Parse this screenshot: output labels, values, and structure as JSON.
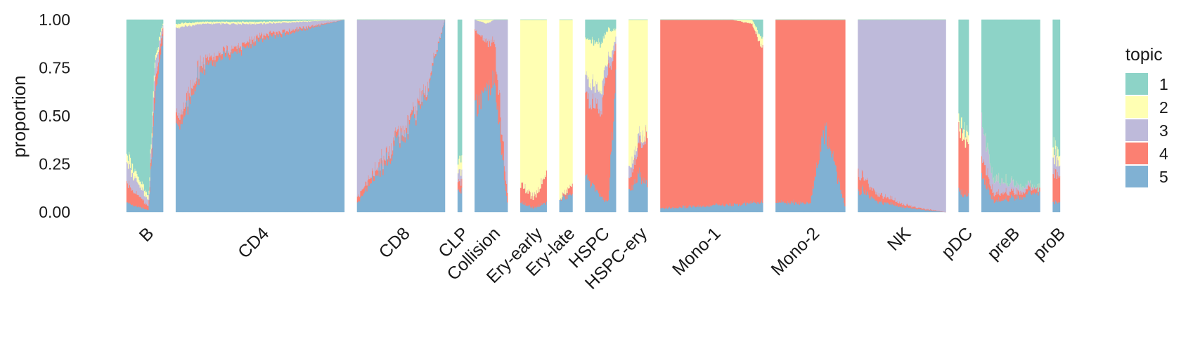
{
  "chart_data": {
    "type": "area",
    "subtype": "stacked structure plot (per-cell topic proportions, grouped by cell type)",
    "ylabel": "proportion",
    "xlabel": "",
    "ylim": [
      0,
      1
    ],
    "yticks": [
      "0.00",
      "0.25",
      "0.50",
      "0.75",
      "1.00"
    ],
    "grid": false,
    "legend": {
      "title": "topic",
      "placement": "right",
      "entries": [
        "1",
        "2",
        "3",
        "4",
        "5"
      ],
      "colors": [
        "#8dd3c7",
        "#ffffb3",
        "#bebada",
        "#fb8072",
        "#80b1d3"
      ]
    },
    "stack_order_bottom_to_top": [
      "5",
      "4",
      "3",
      "2",
      "1"
    ],
    "groups": [
      {
        "label": "B",
        "ncells": 50,
        "profile": [
          {
            "at": 0.0,
            "t1": 0.7,
            "t2": 0.05,
            "t3": 0.1,
            "t4": 0.1,
            "t5": 0.05
          },
          {
            "at": 0.6,
            "t1": 0.92,
            "t2": 0.02,
            "t3": 0.03,
            "t4": 0.02,
            "t5": 0.01
          },
          {
            "at": 0.78,
            "t1": 0.2,
            "t2": 0.03,
            "t3": 0.1,
            "t4": 0.07,
            "t5": 0.6
          },
          {
            "at": 1.0,
            "t1": 0.02,
            "t2": 0.01,
            "t3": 0.02,
            "t4": 0.05,
            "t5": 0.9
          }
        ]
      },
      {
        "label": "CD4",
        "ncells": 230,
        "profile": [
          {
            "at": 0.0,
            "t1": 0.02,
            "t2": 0.02,
            "t3": 0.48,
            "t4": 0.05,
            "t5": 0.43
          },
          {
            "at": 0.15,
            "t1": 0.01,
            "t2": 0.01,
            "t3": 0.2,
            "t4": 0.03,
            "t5": 0.75
          },
          {
            "at": 0.5,
            "t1": 0.01,
            "t2": 0.01,
            "t3": 0.06,
            "t4": 0.02,
            "t5": 0.9
          },
          {
            "at": 1.0,
            "t1": 0.0,
            "t2": 0.0,
            "t3": 0.0,
            "t4": 0.0,
            "t5": 1.0
          }
        ]
      },
      {
        "label": "CD8",
        "ncells": 120,
        "profile": [
          {
            "at": 0.0,
            "t1": 0.0,
            "t2": 0.0,
            "t3": 0.92,
            "t4": 0.03,
            "t5": 0.05
          },
          {
            "at": 0.4,
            "t1": 0.0,
            "t2": 0.0,
            "t3": 0.65,
            "t4": 0.03,
            "t5": 0.32
          },
          {
            "at": 0.8,
            "t1": 0.0,
            "t2": 0.0,
            "t3": 0.35,
            "t4": 0.02,
            "t5": 0.63
          },
          {
            "at": 1.0,
            "t1": 0.0,
            "t2": 0.0,
            "t3": 0.0,
            "t4": 0.0,
            "t5": 1.0
          }
        ]
      },
      {
        "label": "CLP",
        "ncells": 6,
        "profile": [
          {
            "at": 0.0,
            "t1": 0.75,
            "t2": 0.05,
            "t3": 0.05,
            "t4": 0.05,
            "t5": 0.1
          },
          {
            "at": 1.0,
            "t1": 0.7,
            "t2": 0.08,
            "t3": 0.05,
            "t4": 0.05,
            "t5": 0.12
          }
        ]
      },
      {
        "label": "Collision",
        "ncells": 45,
        "profile": [
          {
            "at": 0.0,
            "t1": 0.0,
            "t2": 0.0,
            "t3": 0.05,
            "t4": 0.4,
            "t5": 0.55
          },
          {
            "at": 0.35,
            "t1": 0.0,
            "t2": 0.02,
            "t3": 0.1,
            "t4": 0.25,
            "t5": 0.63
          },
          {
            "at": 0.6,
            "t1": 0.0,
            "t2": 0.0,
            "t3": 0.1,
            "t4": 0.2,
            "t5": 0.7
          },
          {
            "at": 1.0,
            "t1": 0.0,
            "t2": 0.0,
            "t3": 0.9,
            "t4": 0.05,
            "t5": 0.05
          }
        ]
      },
      {
        "label": "Ery-early",
        "ncells": 36,
        "profile": [
          {
            "at": 0.0,
            "t1": 0.0,
            "t2": 0.85,
            "t3": 0.0,
            "t4": 0.1,
            "t5": 0.05
          },
          {
            "at": 0.5,
            "t1": 0.0,
            "t2": 0.93,
            "t3": 0.0,
            "t4": 0.05,
            "t5": 0.02
          },
          {
            "at": 1.0,
            "t1": 0.0,
            "t2": 0.8,
            "t3": 0.0,
            "t4": 0.15,
            "t5": 0.05
          }
        ]
      },
      {
        "label": "Ery-late",
        "ncells": 18,
        "profile": [
          {
            "at": 0.0,
            "t1": 0.0,
            "t2": 0.93,
            "t3": 0.0,
            "t4": 0.0,
            "t5": 0.07
          },
          {
            "at": 1.0,
            "t1": 0.0,
            "t2": 0.85,
            "t3": 0.0,
            "t4": 0.05,
            "t5": 0.1
          }
        ]
      },
      {
        "label": "HSPC",
        "ncells": 42,
        "profile": [
          {
            "at": 0.0,
            "t1": 0.1,
            "t2": 0.2,
            "t3": 0.1,
            "t4": 0.4,
            "t5": 0.2
          },
          {
            "at": 0.5,
            "t1": 0.12,
            "t2": 0.25,
            "t3": 0.1,
            "t4": 0.45,
            "t5": 0.08
          },
          {
            "at": 0.75,
            "t1": 0.05,
            "t2": 0.15,
            "t3": 0.05,
            "t4": 0.7,
            "t5": 0.05
          },
          {
            "at": 1.0,
            "t1": 0.05,
            "t2": 0.05,
            "t3": 0.05,
            "t4": 0.15,
            "t5": 0.7
          }
        ]
      },
      {
        "label": "HSPC-ery",
        "ncells": 26,
        "profile": [
          {
            "at": 0.0,
            "t1": 0.0,
            "t2": 0.8,
            "t3": 0.05,
            "t4": 0.05,
            "t5": 0.1
          },
          {
            "at": 0.5,
            "t1": 0.0,
            "t2": 0.6,
            "t3": 0.05,
            "t4": 0.15,
            "t5": 0.2
          },
          {
            "at": 1.0,
            "t1": 0.0,
            "t2": 0.6,
            "t3": 0.0,
            "t4": 0.25,
            "t5": 0.15
          }
        ]
      },
      {
        "label": "Mono-1",
        "ncells": 140,
        "profile": [
          {
            "at": 0.0,
            "t1": 0.0,
            "t2": 0.0,
            "t3": 0.0,
            "t4": 0.98,
            "t5": 0.02
          },
          {
            "at": 0.7,
            "t1": 0.0,
            "t2": 0.0,
            "t3": 0.0,
            "t4": 0.96,
            "t5": 0.04
          },
          {
            "at": 0.9,
            "t1": 0.0,
            "t2": 0.02,
            "t3": 0.0,
            "t4": 0.93,
            "t5": 0.05
          },
          {
            "at": 1.0,
            "t1": 0.1,
            "t2": 0.05,
            "t3": 0.0,
            "t4": 0.8,
            "t5": 0.05
          }
        ]
      },
      {
        "label": "Mono-2",
        "ncells": 95,
        "profile": [
          {
            "at": 0.0,
            "t1": 0.0,
            "t2": 0.0,
            "t3": 0.0,
            "t4": 0.95,
            "t5": 0.05
          },
          {
            "at": 0.5,
            "t1": 0.0,
            "t2": 0.0,
            "t3": 0.0,
            "t4": 0.95,
            "t5": 0.05
          },
          {
            "at": 0.72,
            "t1": 0.0,
            "t2": 0.0,
            "t3": 0.0,
            "t4": 0.55,
            "t5": 0.45
          },
          {
            "at": 1.0,
            "t1": 0.0,
            "t2": 0.0,
            "t3": 0.0,
            "t4": 0.97,
            "t5": 0.03
          }
        ]
      },
      {
        "label": "NK",
        "ncells": 120,
        "profile": [
          {
            "at": 0.0,
            "t1": 0.0,
            "t2": 0.0,
            "t3": 0.8,
            "t4": 0.08,
            "t5": 0.12
          },
          {
            "at": 0.2,
            "t1": 0.0,
            "t2": 0.0,
            "t3": 0.9,
            "t4": 0.04,
            "t5": 0.06
          },
          {
            "at": 0.6,
            "t1": 0.0,
            "t2": 0.0,
            "t3": 0.97,
            "t4": 0.01,
            "t5": 0.02
          },
          {
            "at": 1.0,
            "t1": 0.0,
            "t2": 0.0,
            "t3": 1.0,
            "t4": 0.0,
            "t5": 0.0
          }
        ]
      },
      {
        "label": "pDC",
        "ncells": 14,
        "profile": [
          {
            "at": 0.0,
            "t1": 0.5,
            "t2": 0.05,
            "t3": 0.0,
            "t4": 0.35,
            "t5": 0.1
          },
          {
            "at": 1.0,
            "t1": 0.6,
            "t2": 0.05,
            "t3": 0.0,
            "t4": 0.25,
            "t5": 0.1
          }
        ]
      },
      {
        "label": "preB",
        "ncells": 80,
        "profile": [
          {
            "at": 0.0,
            "t1": 0.5,
            "t2": 0.0,
            "t3": 0.2,
            "t4": 0.1,
            "t5": 0.2
          },
          {
            "at": 0.2,
            "t1": 0.82,
            "t2": 0.0,
            "t3": 0.08,
            "t4": 0.04,
            "t5": 0.06
          },
          {
            "at": 1.0,
            "t1": 0.88,
            "t2": 0.0,
            "t3": 0.0,
            "t4": 0.02,
            "t5": 0.1
          }
        ]
      },
      {
        "label": "proB",
        "ncells": 10,
        "profile": [
          {
            "at": 0.0,
            "t1": 0.65,
            "t2": 0.05,
            "t3": 0.1,
            "t4": 0.15,
            "t5": 0.05
          },
          {
            "at": 1.0,
            "t1": 0.7,
            "t2": 0.05,
            "t3": 0.05,
            "t4": 0.15,
            "t5": 0.05
          }
        ]
      }
    ]
  }
}
